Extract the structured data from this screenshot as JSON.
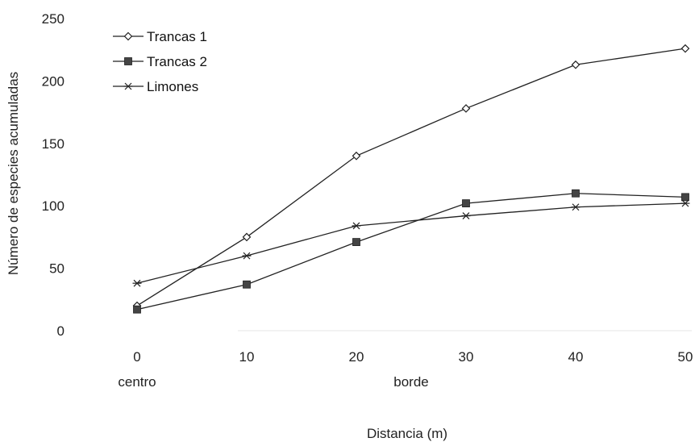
{
  "chart_data": {
    "type": "line",
    "x": [
      0,
      10,
      20,
      30,
      40,
      50
    ],
    "x_tick_labels": [
      "0",
      "10",
      "20",
      "30",
      "40",
      "50"
    ],
    "x_annotations": [
      {
        "at": 0,
        "text": "centro"
      },
      {
        "at": 25,
        "text": "borde"
      }
    ],
    "xlabel": "Distancia (m)",
    "ylabel": "Número de especies acumuladas",
    "ylim": [
      0,
      250
    ],
    "y_ticks": [
      0,
      50,
      100,
      150,
      200,
      250
    ],
    "legend_position": "top-left",
    "grid": false,
    "series": [
      {
        "name": "Trancas 1",
        "marker": "diamond-open",
        "color": "#222222",
        "values": [
          20,
          75,
          140,
          178,
          213,
          226
        ]
      },
      {
        "name": "Trancas 2",
        "marker": "square-filled",
        "color": "#222222",
        "values": [
          17,
          37,
          71,
          102,
          110,
          107
        ]
      },
      {
        "name": "Limones",
        "marker": "asterisk",
        "color": "#222222",
        "values": [
          38,
          60,
          84,
          92,
          99,
          102
        ]
      }
    ]
  }
}
